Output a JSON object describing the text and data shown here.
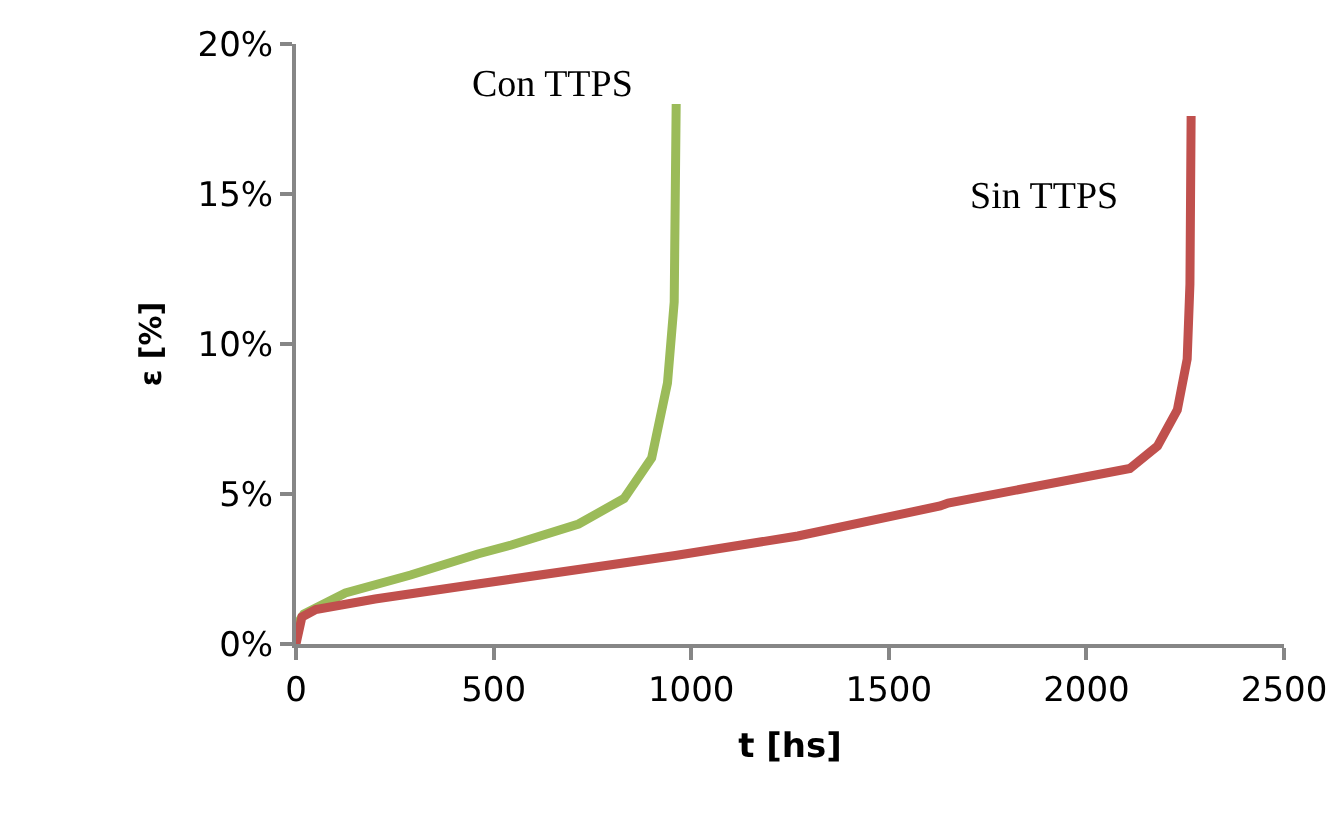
{
  "chart_data": {
    "type": "line",
    "xlabel": "t [hs]",
    "ylabel": "ε [%]",
    "xlim": [
      0,
      2500
    ],
    "xticks": [
      0,
      500,
      1000,
      1500,
      2000,
      2500
    ],
    "ylim": [
      0,
      20
    ],
    "yticks": [
      {
        "value": 0,
        "label": "0%"
      },
      {
        "value": 5,
        "label": "5%"
      },
      {
        "value": 10,
        "label": "10%"
      },
      {
        "value": 15,
        "label": "15%"
      },
      {
        "value": 20,
        "label": "20%"
      }
    ],
    "grid": false,
    "legend": false,
    "marker": "none",
    "line_style": "solid",
    "series": [
      {
        "name": "Con TTPS",
        "color": "#9bbb59",
        "x": [
          0,
          20,
          125,
          290,
          460,
          545,
          715,
          830,
          900,
          940,
          957,
          962
        ],
        "values": [
          0.6,
          1.0,
          1.7,
          2.3,
          3.0,
          3.3,
          4.0,
          4.85,
          6.2,
          8.7,
          11.4,
          18.0
        ]
      },
      {
        "name": "Sin TTPS",
        "color": "#c0504d",
        "x": [
          0,
          15,
          50,
          200,
          460,
          960,
          1270,
          1630,
          1650,
          2110,
          2180,
          2230,
          2255,
          2262,
          2265
        ],
        "values": [
          0,
          0.9,
          1.15,
          1.5,
          2.0,
          2.95,
          3.6,
          4.6,
          4.7,
          5.85,
          6.6,
          7.8,
          9.5,
          12,
          17.6
        ]
      }
    ]
  }
}
